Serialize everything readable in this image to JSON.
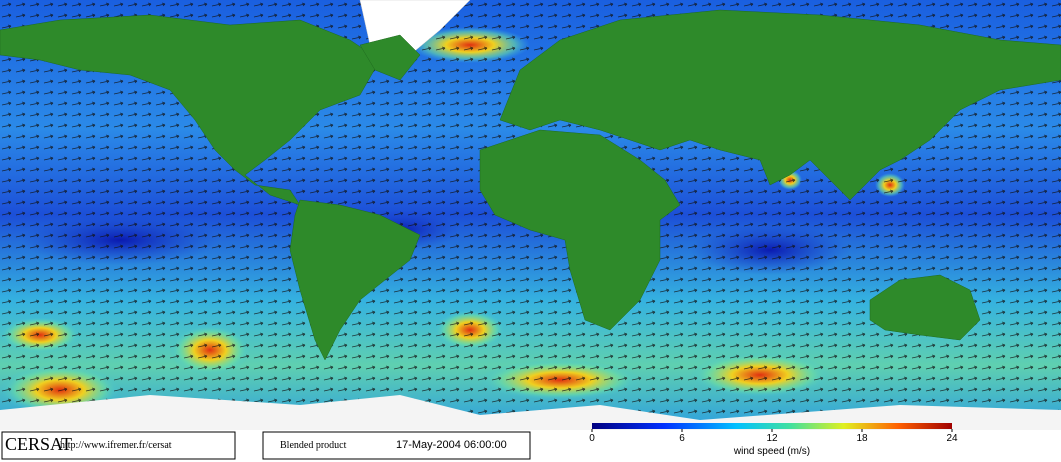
{
  "logo": "CERSAT",
  "url": "http://www.ifremer.fr/cersat",
  "product": "Blended product",
  "timestamp": "17-May-2004 06:00:00",
  "legend": {
    "title": "wind speed (m/s)",
    "range": [
      0,
      24
    ],
    "ticks": [
      0,
      6,
      12,
      18,
      24
    ]
  }
}
